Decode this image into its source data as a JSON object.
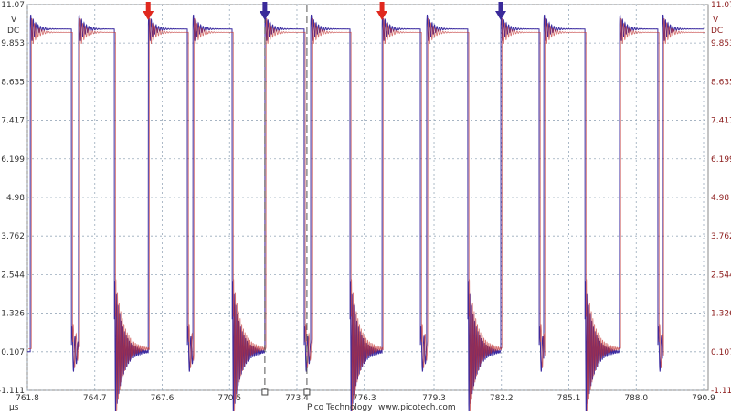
{
  "chart_data": {
    "type": "line",
    "title": "",
    "y_unit": "V",
    "y_coupling": "DC",
    "x_unit": "µs",
    "xlim": [
      761.8,
      790.9
    ],
    "ylim": [
      -1.111,
      11.07
    ],
    "x_ticks": [
      "761.8",
      "764.7",
      "767.6",
      "770.5",
      "773.4",
      "776.3",
      "779.3",
      "782.2",
      "785.1",
      "788.0",
      "790.9"
    ],
    "y_ticks": [
      "11.07",
      "9.853",
      "8.635",
      "7.417",
      "6.199",
      "4.98",
      "3.762",
      "2.544",
      "1.326",
      "0.107",
      "-1.111"
    ],
    "grid": true,
    "high_level": 10.3,
    "low_level": 0.107,
    "high_intervals": [
      [
        761.92,
        763.69
      ],
      [
        764.0,
        765.54
      ],
      [
        767.0,
        768.68
      ],
      [
        768.92,
        770.61
      ],
      [
        772.02,
        773.71
      ],
      [
        773.99,
        775.68
      ],
      [
        777.06,
        778.71
      ],
      [
        778.98,
        780.75
      ],
      [
        782.17,
        783.82
      ],
      [
        784.02,
        785.79
      ],
      [
        787.28,
        788.93
      ],
      [
        789.13,
        790.9
      ]
    ],
    "markers": [
      {
        "color": "#e0281e",
        "x": 767.0
      },
      {
        "color": "#3a2a9a",
        "x": 772.02
      },
      {
        "color": "#e0281e",
        "x": 777.06
      },
      {
        "color": "#3a2a9a",
        "x": 782.17
      }
    ],
    "cursors": [
      772.02,
      773.83
    ],
    "colors": {
      "trace_a": "#3c3c50",
      "trace_b": "#c03030",
      "ringing_a": "#3a2aa0",
      "ringing_b": "#c0203a",
      "grid": "#9ab",
      "right_axis": "#8b1a1a"
    }
  },
  "footer": {
    "company": "Pico Technology",
    "url": "www.picotech.com"
  }
}
